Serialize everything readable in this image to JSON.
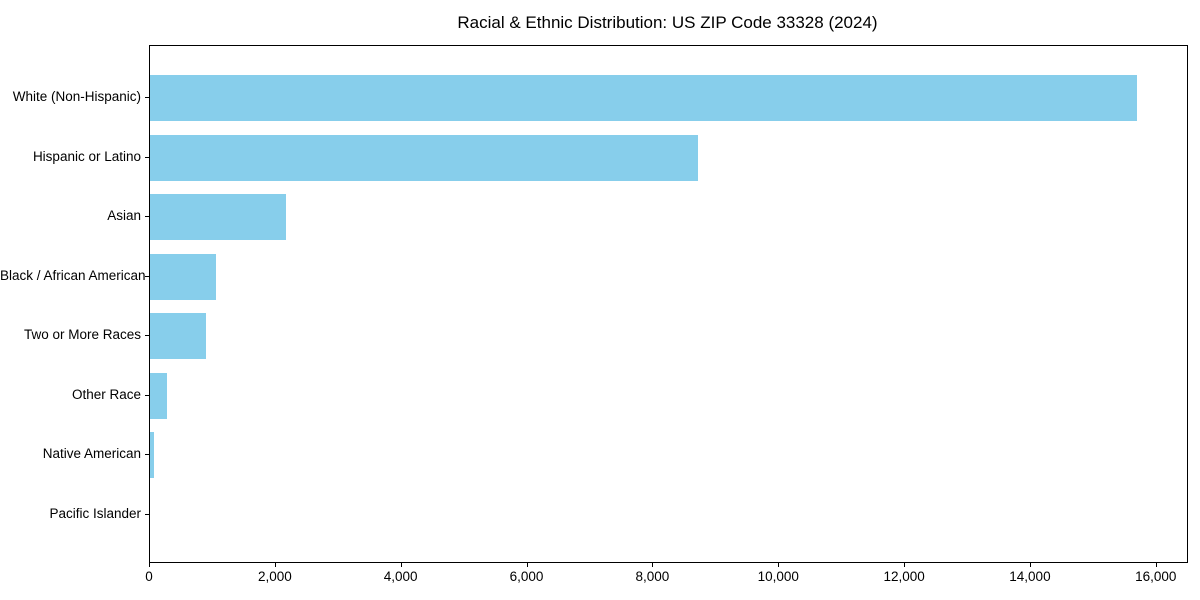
{
  "chart_data": {
    "type": "bar",
    "orientation": "horizontal",
    "title": "Racial & Ethnic Distribution: US ZIP Code 33328 (2024)",
    "categories": [
      "White (Non-Hispanic)",
      "Hispanic or Latino",
      "Asian",
      "Black / African American",
      "Two or More Races",
      "Other Race",
      "Native American",
      "Pacific Islander"
    ],
    "values": [
      15680,
      8710,
      2160,
      1050,
      890,
      270,
      70,
      0
    ],
    "bar_color": "#87CEEB",
    "xlim": [
      0,
      16480
    ],
    "x_ticks": [
      0,
      2000,
      4000,
      6000,
      8000,
      10000,
      12000,
      14000,
      16000
    ],
    "x_tick_labels": [
      "0",
      "2,000",
      "4,000",
      "6,000",
      "8,000",
      "10,000",
      "12,000",
      "14,000",
      "16,000"
    ],
    "grid": false,
    "legend": null,
    "xlabel": "",
    "ylabel": ""
  }
}
